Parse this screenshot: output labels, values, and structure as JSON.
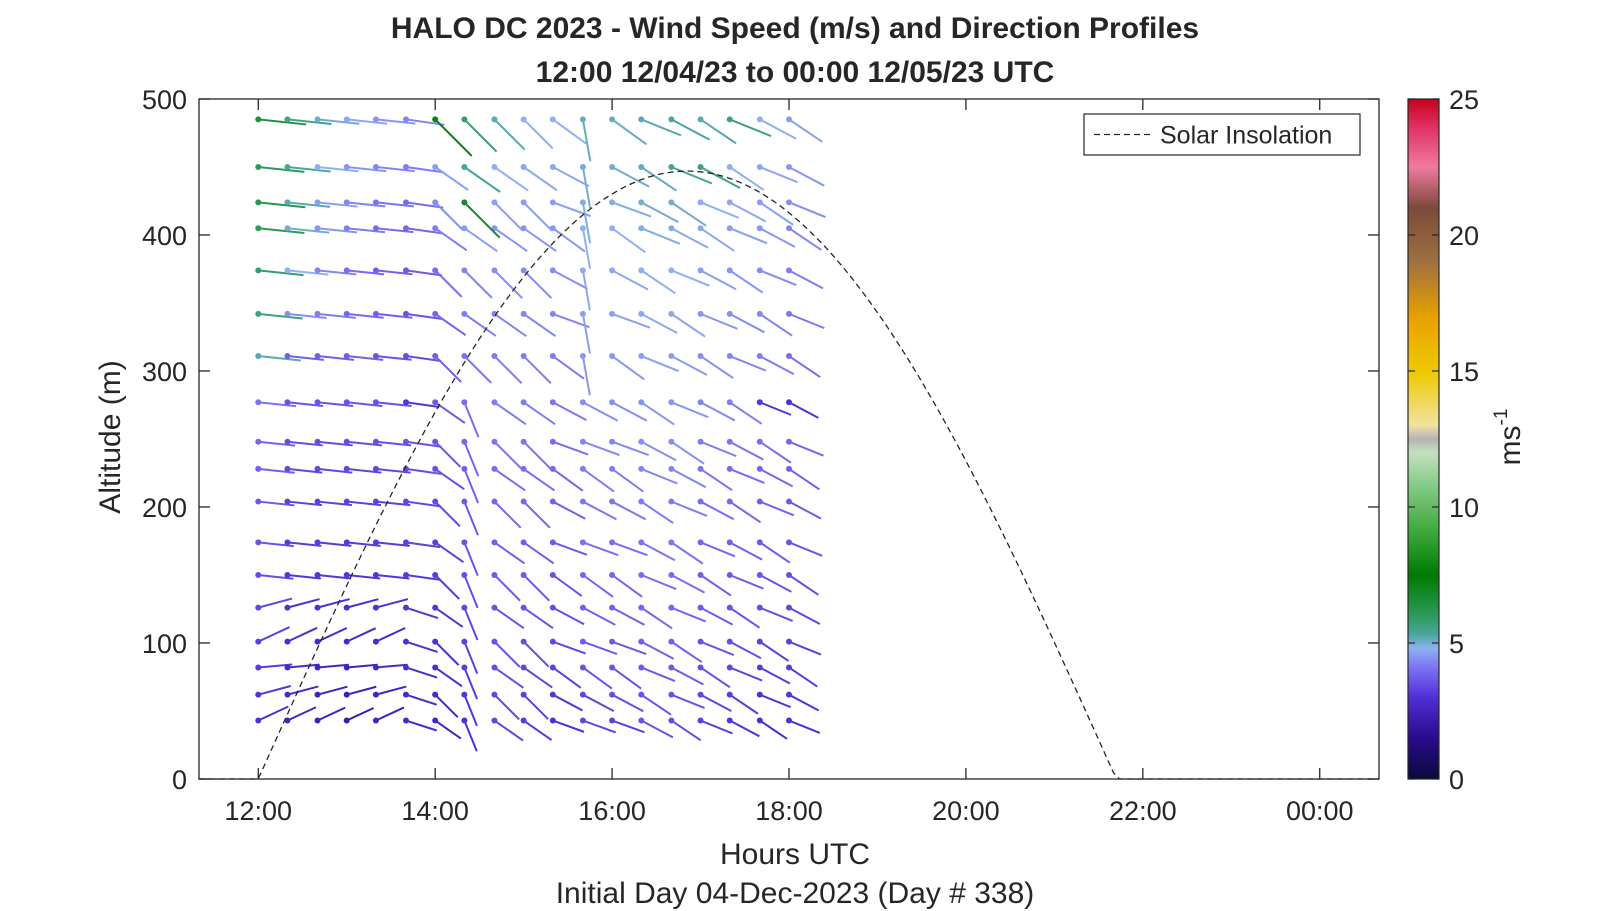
{
  "chart_data": {
    "type": "wind-barb-profile",
    "title": "HALO DC 2023 - Wind Speed (m/s) and Direction Profiles",
    "subtitle": "12:00 12/04/23 to 00:00 12/05/23  UTC",
    "xlabel": "Hours UTC",
    "xlabel2": "Initial Day 04-Dec-2023 (Day # 338)",
    "ylabel": "Altitude (m)",
    "xlim": [
      11.33,
      24.67
    ],
    "ylim": [
      0,
      500
    ],
    "xticks": [
      12,
      14,
      16,
      18,
      20,
      22,
      24
    ],
    "xticklabels": [
      "12:00",
      "14:00",
      "16:00",
      "18:00",
      "20:00",
      "22:00",
      "00:00"
    ],
    "yticks": [
      0,
      100,
      200,
      300,
      400,
      500
    ],
    "yticklabels": [
      "0",
      "100",
      "200",
      "300",
      "400",
      "500"
    ],
    "grid": false,
    "legend": {
      "placement": "top-right",
      "entries": [
        "Solar Insolation"
      ]
    },
    "colorbar": {
      "label": "ms",
      "label_superscript": "-1",
      "range": [
        0,
        25
      ],
      "ticks": [
        0,
        5,
        10,
        15,
        20,
        25
      ],
      "ticklabels": [
        "0",
        "5",
        "10",
        "15",
        "20",
        "25"
      ]
    },
    "solar_insolation": {
      "name": "Solar Insolation",
      "line_style": "dashed",
      "sunrise_hour": 12.0,
      "sunset_hour": 21.7,
      "peak_hour": 16.95,
      "peak_altitude": 447
    },
    "wind": {
      "time_hours": [
        12.0,
        12.33,
        12.67,
        13.0,
        13.33,
        13.67,
        14.0,
        14.33,
        14.67,
        15.0,
        15.33,
        15.67,
        16.0,
        16.33,
        16.67,
        17.0,
        17.33,
        17.67,
        18.0
      ],
      "altitudes_m": [
        43,
        62,
        82,
        101,
        126,
        150,
        174,
        204,
        228,
        248,
        277,
        311,
        342,
        374,
        405,
        424,
        450,
        485
      ],
      "speed_ms_by_altitude": [
        [
          3.0,
          2.6,
          2.4,
          2.2,
          2.5,
          2.8,
          2.6,
          3.0,
          3.4,
          3.2,
          3.0,
          3.4,
          3.3,
          3.6,
          3.5,
          3.3,
          3.1,
          2.9,
          3.0
        ],
        [
          3.1,
          2.7,
          2.5,
          2.4,
          2.6,
          2.8,
          2.7,
          3.1,
          3.4,
          3.3,
          3.1,
          3.4,
          3.5,
          3.6,
          3.6,
          3.4,
          3.2,
          3.0,
          3.1
        ],
        [
          3.2,
          2.8,
          2.6,
          2.5,
          2.7,
          2.9,
          2.9,
          3.2,
          3.5,
          3.4,
          3.3,
          3.6,
          3.6,
          3.7,
          3.7,
          3.5,
          3.4,
          3.2,
          3.2
        ],
        [
          3.3,
          2.9,
          2.8,
          2.7,
          2.8,
          3.0,
          3.0,
          3.3,
          3.6,
          3.5,
          3.4,
          3.7,
          3.7,
          3.8,
          3.8,
          3.6,
          3.5,
          3.3,
          3.3
        ],
        [
          3.4,
          3.0,
          3.0,
          2.9,
          3.0,
          3.1,
          3.1,
          3.4,
          3.6,
          3.6,
          3.5,
          3.8,
          3.8,
          3.9,
          3.9,
          3.7,
          3.6,
          3.5,
          3.4
        ],
        [
          3.5,
          3.1,
          3.1,
          3.1,
          3.1,
          3.2,
          3.2,
          3.5,
          3.7,
          3.7,
          3.6,
          3.9,
          3.9,
          4.0,
          4.0,
          3.8,
          3.7,
          3.6,
          3.5
        ],
        [
          3.6,
          3.2,
          3.2,
          3.2,
          3.2,
          3.3,
          3.3,
          3.6,
          3.8,
          3.8,
          3.7,
          4.0,
          4.0,
          4.1,
          4.1,
          3.9,
          3.8,
          3.7,
          3.6
        ],
        [
          3.7,
          3.3,
          3.3,
          3.3,
          3.3,
          3.4,
          3.4,
          3.7,
          3.9,
          3.9,
          3.8,
          4.1,
          4.1,
          4.2,
          4.2,
          4.0,
          3.9,
          3.8,
          3.7
        ],
        [
          3.8,
          3.4,
          3.4,
          3.4,
          3.4,
          3.5,
          3.5,
          3.8,
          4.0,
          4.0,
          3.9,
          4.2,
          4.2,
          4.3,
          4.3,
          4.1,
          4.0,
          3.9,
          3.8
        ],
        [
          3.9,
          3.5,
          3.5,
          3.5,
          3.5,
          3.6,
          3.6,
          3.9,
          4.1,
          4.1,
          4.0,
          4.3,
          4.3,
          4.4,
          4.4,
          4.2,
          4.1,
          4.0,
          3.9
        ],
        [
          4.1,
          3.6,
          3.6,
          3.6,
          3.6,
          3.1,
          3.7,
          4.0,
          4.2,
          4.2,
          4.1,
          4.4,
          4.4,
          4.5,
          4.5,
          4.3,
          4.2,
          3.1,
          3.0
        ],
        [
          5.2,
          3.8,
          3.8,
          3.8,
          3.6,
          3.5,
          3.8,
          4.1,
          4.2,
          4.2,
          4.2,
          4.5,
          4.5,
          4.6,
          4.6,
          4.4,
          4.3,
          4.2,
          4.0
        ],
        [
          5.6,
          4.4,
          4.2,
          3.9,
          3.8,
          3.6,
          3.9,
          4.2,
          4.3,
          4.3,
          4.3,
          4.6,
          4.6,
          4.7,
          4.7,
          4.5,
          4.4,
          4.3,
          4.1
        ],
        [
          5.8,
          4.8,
          4.3,
          4.0,
          3.8,
          3.7,
          4.0,
          4.3,
          4.4,
          4.4,
          4.4,
          4.7,
          4.7,
          4.8,
          4.8,
          4.6,
          4.5,
          4.4,
          4.2
        ],
        [
          6.0,
          5.0,
          4.5,
          4.2,
          4.0,
          3.9,
          4.2,
          4.6,
          4.5,
          4.5,
          4.5,
          4.8,
          4.8,
          4.9,
          4.9,
          4.7,
          4.6,
          4.5,
          4.3
        ],
        [
          6.2,
          5.2,
          4.6,
          4.3,
          4.1,
          4.0,
          4.4,
          6.8,
          4.6,
          4.6,
          4.6,
          4.9,
          4.9,
          5.0,
          5.0,
          4.8,
          4.7,
          4.6,
          4.4
        ],
        [
          6.0,
          5.3,
          4.8,
          4.5,
          4.3,
          4.2,
          4.6,
          5.4,
          4.8,
          4.7,
          4.7,
          5.0,
          5.0,
          5.1,
          5.4,
          5.6,
          4.8,
          4.7,
          4.5
        ],
        [
          6.4,
          5.5,
          5.0,
          4.7,
          4.5,
          4.3,
          7.2,
          5.8,
          5.2,
          4.8,
          4.8,
          5.1,
          5.1,
          5.2,
          5.3,
          5.2,
          5.6,
          4.8,
          4.6
        ]
      ],
      "direction_note": "barbs point in the direction the wind is blowing toward"
    }
  }
}
